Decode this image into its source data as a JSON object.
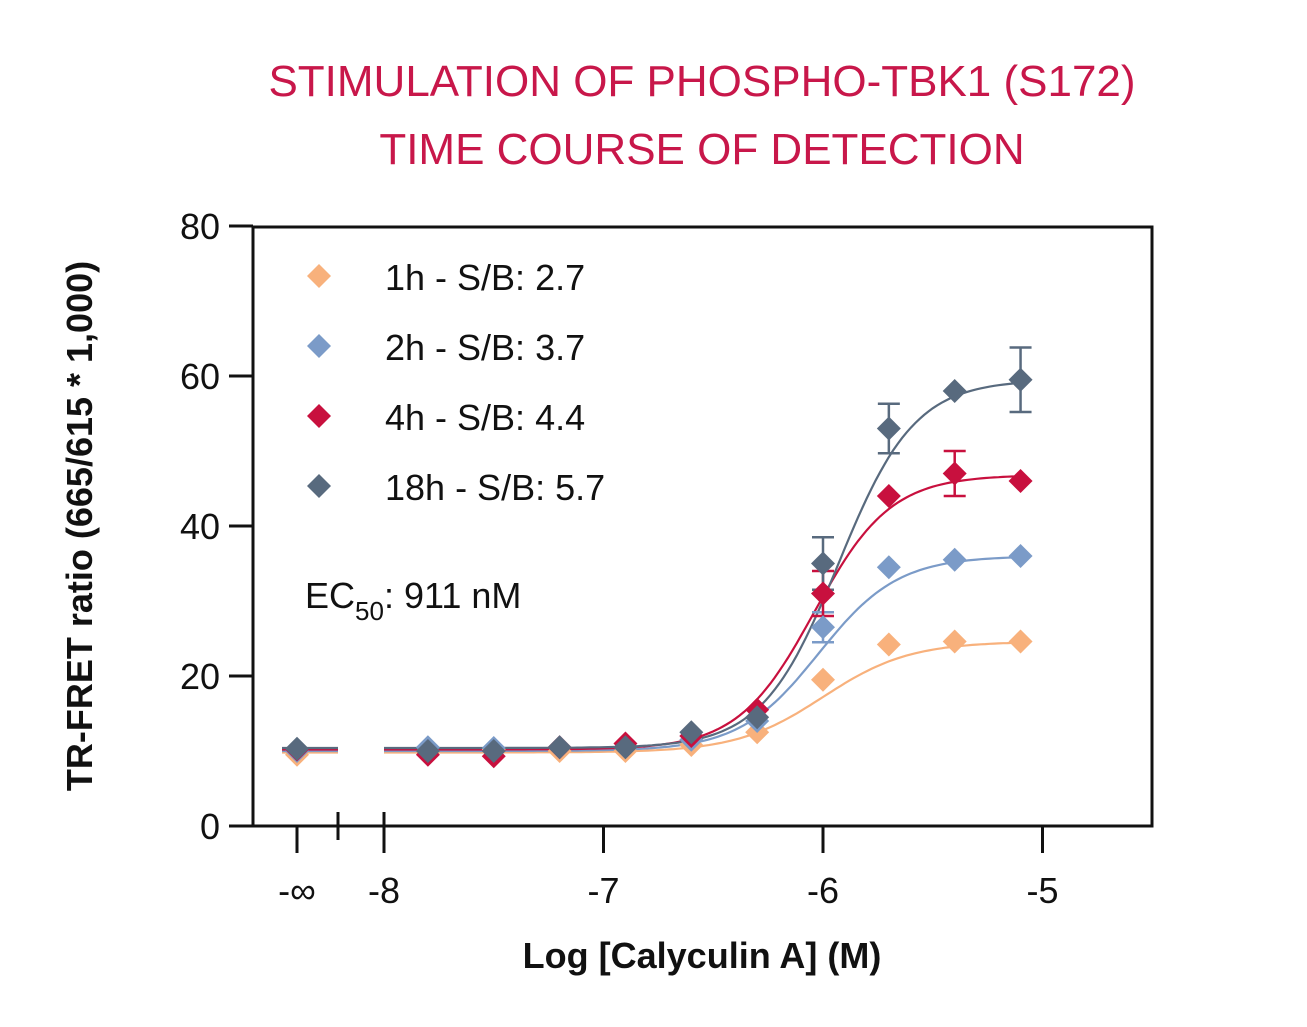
{
  "chart_data": {
    "type": "scatter",
    "title": [
      "STIMULATION OF PHOSPHO-TBK1 (S172)",
      "TIME COURSE OF DETECTION"
    ],
    "xlabel": "Log [Calyculin A] (M)",
    "ylabel": "TR-FRET ratio (665/615 * 1,000)",
    "x_scale": "log10 concentration (M) with broken axis; '-∞' = zero concentration",
    "xlim": [
      -8,
      -4.5
    ],
    "ylim": [
      0,
      80
    ],
    "x_ticks": [
      -8,
      -7,
      -6,
      -5
    ],
    "x_tick_labels": [
      "-8",
      "-7",
      "-6",
      "-5"
    ],
    "x_break_tick_label": "-∞",
    "y_ticks": [
      0,
      20,
      40,
      60,
      80
    ],
    "y_tick_labels": [
      "0",
      "20",
      "40",
      "60",
      "80"
    ],
    "grid": false,
    "legend_position": "top-left",
    "annotation": {
      "prefix": "EC",
      "subscript": "50",
      "suffix": ": 911 nM"
    },
    "series": [
      {
        "name": "1h - S/B: 2.7",
        "color": "#f8b17c",
        "zero_value": 9.5,
        "fit": {
          "bottom": 9.8,
          "top": 24.6,
          "logEC50": -6.0,
          "hill": 2.2
        },
        "points": [
          {
            "x": -7.8,
            "y": 10.0
          },
          {
            "x": -7.5,
            "y": 10.2
          },
          {
            "x": -7.2,
            "y": 10.0
          },
          {
            "x": -6.9,
            "y": 10.0
          },
          {
            "x": -6.6,
            "y": 10.8
          },
          {
            "x": -6.3,
            "y": 12.5
          },
          {
            "x": -6.0,
            "y": 19.5
          },
          {
            "x": -5.7,
            "y": 24.2
          },
          {
            "x": -5.4,
            "y": 24.6
          },
          {
            "x": -5.1,
            "y": 24.6
          }
        ]
      },
      {
        "name": "2h - S/B: 3.7",
        "color": "#7b9bc8",
        "zero_value": 10.0,
        "fit": {
          "bottom": 10.0,
          "top": 36.0,
          "logEC50": -6.02,
          "hill": 2.4
        },
        "points": [
          {
            "x": -7.8,
            "y": 10.5
          },
          {
            "x": -7.5,
            "y": 10.4
          },
          {
            "x": -7.2,
            "y": 10.5
          },
          {
            "x": -6.9,
            "y": 10.5
          },
          {
            "x": -6.6,
            "y": 11.5
          },
          {
            "x": -6.3,
            "y": 14.0
          },
          {
            "x": -6.0,
            "y": 26.5,
            "err": 2.0
          },
          {
            "x": -5.7,
            "y": 34.5
          },
          {
            "x": -5.4,
            "y": 35.5
          },
          {
            "x": -5.1,
            "y": 36.0
          }
        ]
      },
      {
        "name": "4h - S/B: 4.4",
        "color": "#c8103e",
        "zero_value": 10.2,
        "fit": {
          "bottom": 10.2,
          "top": 46.8,
          "logEC50": -6.04,
          "hill": 2.5
        },
        "points": [
          {
            "x": -7.8,
            "y": 9.5
          },
          {
            "x": -7.5,
            "y": 9.3
          },
          {
            "x": -7.2,
            "y": 10.5
          },
          {
            "x": -6.9,
            "y": 11.0
          },
          {
            "x": -6.6,
            "y": 12.0
          },
          {
            "x": -6.3,
            "y": 15.5
          },
          {
            "x": -6.0,
            "y": 31.0,
            "err": 3.0
          },
          {
            "x": -5.7,
            "y": 44.0
          },
          {
            "x": -5.4,
            "y": 47.0,
            "err": 3.0
          },
          {
            "x": -5.1,
            "y": 46.0
          }
        ]
      },
      {
        "name": "18h - S/B: 5.7",
        "color": "#586a7e",
        "zero_value": 10.3,
        "fit": {
          "bottom": 10.4,
          "top": 59.5,
          "logEC50": -5.93,
          "hill": 2.5
        },
        "points": [
          {
            "x": -7.8,
            "y": 10.0
          },
          {
            "x": -7.5,
            "y": 10.0
          },
          {
            "x": -7.2,
            "y": 10.5
          },
          {
            "x": -6.9,
            "y": 10.5
          },
          {
            "x": -6.6,
            "y": 12.5
          },
          {
            "x": -6.3,
            "y": 14.5
          },
          {
            "x": -6.0,
            "y": 35.0,
            "err": 3.5
          },
          {
            "x": -5.7,
            "y": 53.0,
            "err": 3.3
          },
          {
            "x": -5.4,
            "y": 58.0
          },
          {
            "x": -5.1,
            "y": 59.5,
            "err": 4.3
          }
        ]
      }
    ]
  }
}
